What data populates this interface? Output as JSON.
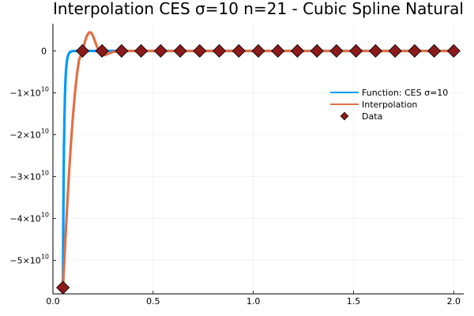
{
  "chart_data": {
    "type": "line",
    "title": "Interpolation CES σ=10 n=21 - Cubic Spline Natural",
    "xlabel": "",
    "ylabel": "",
    "xlim": [
      0.0,
      2.05
    ],
    "ylim": [
      -58000000000,
      6500000000
    ],
    "grid": true,
    "legend_position": "right",
    "x_ticks": [
      {
        "value": 0.0,
        "label": "0.0"
      },
      {
        "value": 0.5,
        "label": "0.5"
      },
      {
        "value": 1.0,
        "label": "1.0"
      },
      {
        "value": 1.5,
        "label": "1.5"
      },
      {
        "value": 2.0,
        "label": "2.0"
      }
    ],
    "y_ticks": [
      {
        "value": 0,
        "label": "0",
        "mantissa": "",
        "exp": ""
      },
      {
        "value": -10000000000,
        "label": "",
        "mantissa": "−1×10",
        "exp": "10"
      },
      {
        "value": -20000000000,
        "label": "",
        "mantissa": "−2×10",
        "exp": "10"
      },
      {
        "value": -30000000000,
        "label": "",
        "mantissa": "−3×10",
        "exp": "10"
      },
      {
        "value": -40000000000,
        "label": "",
        "mantissa": "−4×10",
        "exp": "10"
      },
      {
        "value": -50000000000,
        "label": "",
        "mantissa": "−5×10",
        "exp": "10"
      }
    ],
    "series": [
      {
        "name": "Function: CES σ=10",
        "style": "line",
        "color": "#009AF9",
        "x": [
          0.05,
          0.051,
          0.053,
          0.055,
          0.058,
          0.06,
          0.063,
          0.066,
          0.07,
          0.075,
          0.08,
          0.085,
          0.09,
          0.1,
          0.11,
          0.12,
          0.14,
          0.2,
          0.5,
          1.0,
          1.5,
          2.0
        ],
        "y": [
          -56500000000,
          -46000000000,
          -33000000000,
          -23000000000,
          -15000000000,
          -10500000000,
          -6500000000,
          -4200000000,
          -2300000000,
          -1150000000,
          -600000000,
          -300000000,
          -150000000,
          -40000000,
          -10000000,
          -3000000,
          -500000,
          0,
          0,
          0,
          0,
          0
        ]
      },
      {
        "name": "Interpolation",
        "style": "line",
        "color": "#E26F46",
        "x": [
          0.05,
          0.06,
          0.07,
          0.08,
          0.09,
          0.1,
          0.11,
          0.12,
          0.13,
          0.1475,
          0.16,
          0.17,
          0.18,
          0.19,
          0.2,
          0.21,
          0.22,
          0.23,
          0.245,
          0.26,
          0.28,
          0.3,
          0.32,
          0.345,
          0.4,
          0.5,
          1.0,
          1.5,
          2.0
        ],
        "y": [
          -56500000000,
          -47000000000,
          -38000000000,
          -29500000000,
          -22000000000,
          -15500000000,
          -10000000000,
          -5500000000,
          -2200000000,
          0,
          2300000000,
          3700000000,
          4400000000,
          4400000000,
          3600000000,
          2300000000,
          1000000000,
          0,
          -900000000,
          -1000000000,
          -600000000,
          -250000000,
          -50000000,
          0,
          0,
          0,
          0,
          0,
          0
        ]
      },
      {
        "name": "Data",
        "style": "markers",
        "marker": "diamond",
        "color": "#8B1A1A",
        "x": [
          0.05,
          0.1475,
          0.245,
          0.3425,
          0.44,
          0.5375,
          0.635,
          0.7325,
          0.83,
          0.9275,
          1.025,
          1.1225,
          1.22,
          1.3175,
          1.415,
          1.5125,
          1.61,
          1.7075,
          1.805,
          1.9025,
          2.0
        ],
        "y": [
          -56500000000,
          0,
          0,
          0,
          0,
          0,
          0,
          0,
          0,
          0,
          0,
          0,
          0,
          0,
          0,
          0,
          0,
          0,
          0,
          0,
          0
        ]
      }
    ]
  }
}
